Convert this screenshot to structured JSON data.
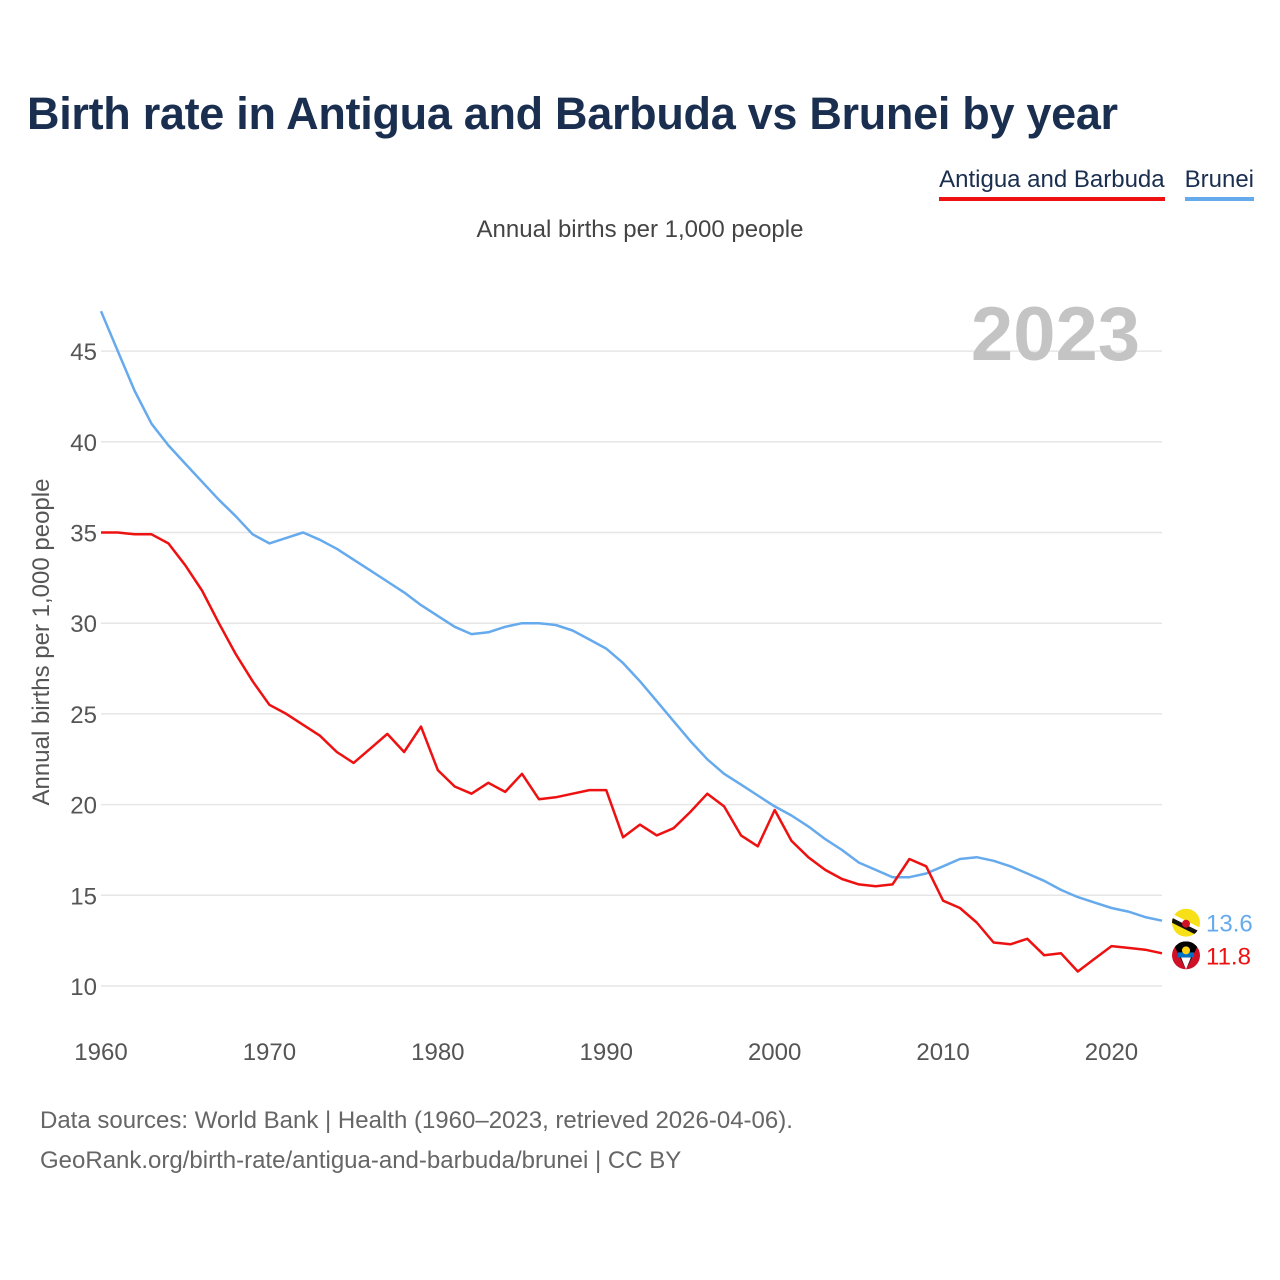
{
  "title": "Birth rate in Antigua and Barbuda vs Brunei by year",
  "subtitle": "Annual births per 1,000 people",
  "footer": {
    "line1": "Data sources: World Bank | Health (1960–2023, retrieved 2026-04-06).",
    "line2": "GeoRank.org/birth-rate/antigua-and-barbuda/brunei | CC BY"
  },
  "chart_data": {
    "type": "line",
    "title": "Birth rate in Antigua and Barbuda vs Brunei by year",
    "subtitle": "Annual births per 1,000 people",
    "xlabel": "",
    "ylabel": "Annual births per 1,000 people",
    "year_label": "2023",
    "xlim": [
      1960,
      2023
    ],
    "ylim": [
      8,
      48
    ],
    "x_ticks": [
      1960,
      1970,
      1980,
      1990,
      2000,
      2010,
      2020
    ],
    "y_ticks": [
      10,
      15,
      20,
      25,
      30,
      35,
      40,
      45
    ],
    "grid": true,
    "legend_position": "top-right",
    "x": [
      1960,
      1961,
      1962,
      1963,
      1964,
      1965,
      1966,
      1967,
      1968,
      1969,
      1970,
      1971,
      1972,
      1973,
      1974,
      1975,
      1976,
      1977,
      1978,
      1979,
      1980,
      1981,
      1982,
      1983,
      1984,
      1985,
      1986,
      1987,
      1988,
      1989,
      1990,
      1991,
      1992,
      1993,
      1994,
      1995,
      1996,
      1997,
      1998,
      1999,
      2000,
      2001,
      2002,
      2003,
      2004,
      2005,
      2006,
      2007,
      2008,
      2009,
      2010,
      2011,
      2012,
      2013,
      2014,
      2015,
      2016,
      2017,
      2018,
      2019,
      2020,
      2021,
      2022,
      2023
    ],
    "series": [
      {
        "name": "Antigua and Barbuda",
        "color": "#ee1111",
        "end_label": "11.8",
        "flag": "antigua-flag-icon",
        "values": [
          35.0,
          35.0,
          34.9,
          34.9,
          34.4,
          33.2,
          31.8,
          30.0,
          28.3,
          26.8,
          25.5,
          25.0,
          24.4,
          23.8,
          22.9,
          22.3,
          23.1,
          23.9,
          22.9,
          24.3,
          21.9,
          21.0,
          20.6,
          21.2,
          20.7,
          21.7,
          20.3,
          20.4,
          20.6,
          20.8,
          20.8,
          18.2,
          18.9,
          18.3,
          18.7,
          19.6,
          20.6,
          19.9,
          18.3,
          17.7,
          19.7,
          18.0,
          17.1,
          16.4,
          15.9,
          15.6,
          15.5,
          15.6,
          17.0,
          16.6,
          14.7,
          14.3,
          13.5,
          12.4,
          12.3,
          12.6,
          11.7,
          11.8,
          10.8,
          11.5,
          12.2,
          12.1,
          12.0,
          11.8
        ]
      },
      {
        "name": "Brunei",
        "color": "#66aaee",
        "end_label": "13.6",
        "flag": "brunei-flag-icon",
        "values": [
          47.2,
          45.0,
          42.8,
          41.0,
          39.8,
          38.8,
          37.8,
          36.8,
          35.9,
          34.9,
          34.4,
          34.7,
          35.0,
          34.6,
          34.1,
          33.5,
          32.9,
          32.3,
          31.7,
          31.0,
          30.4,
          29.8,
          29.4,
          29.5,
          29.8,
          30.0,
          30.0,
          29.9,
          29.6,
          29.1,
          28.6,
          27.8,
          26.8,
          25.7,
          24.6,
          23.5,
          22.5,
          21.7,
          21.1,
          20.5,
          19.9,
          19.4,
          18.8,
          18.1,
          17.5,
          16.8,
          16.4,
          16.0,
          16.0,
          16.2,
          16.6,
          17.0,
          17.1,
          16.9,
          16.6,
          16.2,
          15.8,
          15.3,
          14.9,
          14.6,
          14.3,
          14.1,
          13.8,
          13.6
        ]
      }
    ]
  }
}
